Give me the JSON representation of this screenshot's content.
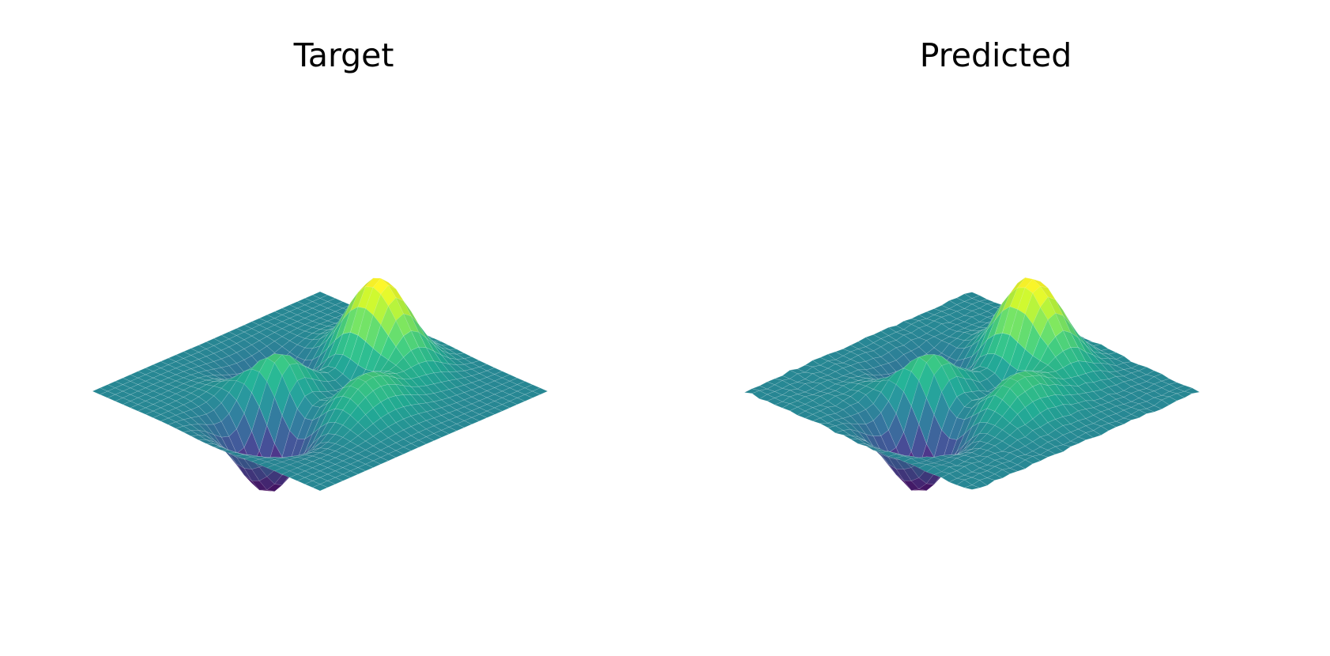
{
  "chart_data": [
    {
      "type": "surface",
      "title": "Target",
      "colormap": "viridis",
      "axes_visible": false,
      "grid": false,
      "function": "peaks",
      "x_range": [
        -3,
        3
      ],
      "y_range": [
        -3,
        3
      ],
      "z_range": [
        -6.5,
        8.1
      ],
      "resolution": 30,
      "noise": 0
    },
    {
      "type": "surface",
      "title": "Predicted",
      "colormap": "viridis",
      "axes_visible": false,
      "grid": false,
      "function": "peaks",
      "x_range": [
        -3,
        3
      ],
      "y_range": [
        -3,
        3
      ],
      "z_range": [
        -6.5,
        8.1
      ],
      "resolution": 30,
      "noise": 0.12
    }
  ],
  "colors": {
    "mesh_edge": "#ffffff",
    "background": "#ffffff"
  }
}
